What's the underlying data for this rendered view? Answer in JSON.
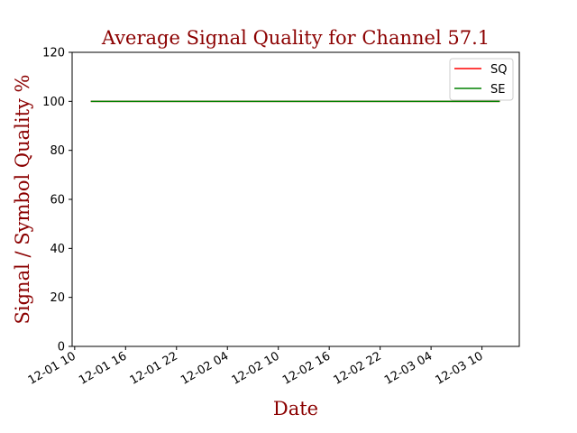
{
  "chart_data": {
    "type": "line",
    "title": "Average Signal Quality for Channel 57.1",
    "xlabel": "Date",
    "ylabel": "Signal / Symbol Quality %",
    "ylim": [
      0,
      120
    ],
    "y_ticks": [
      0,
      20,
      40,
      60,
      80,
      100,
      120
    ],
    "x_tick_labels": [
      "12-01 10",
      "12-01 16",
      "12-01 22",
      "12-02 04",
      "12-02 10",
      "12-02 16",
      "12-02 22",
      "12-03 04",
      "12-03 10"
    ],
    "x_tick_hours": [
      0,
      6,
      12,
      18,
      24,
      30,
      36,
      42,
      48
    ],
    "x_range_hours": [
      -0.3,
      52.4
    ],
    "series": [
      {
        "name": "SQ",
        "color": "#ff0000",
        "x_hours": [
          1.9,
          50.1
        ],
        "values": [
          100,
          100
        ]
      },
      {
        "name": "SE",
        "color": "#008000",
        "x_hours": [
          1.9,
          50.1
        ],
        "values": [
          100,
          100
        ]
      }
    ],
    "legend": {
      "location": "top-right",
      "entries": [
        "SQ",
        "SE"
      ]
    },
    "grid": false
  }
}
